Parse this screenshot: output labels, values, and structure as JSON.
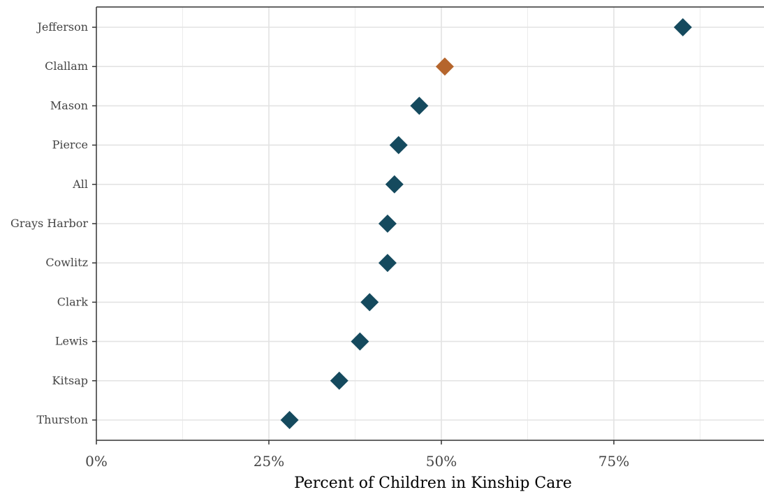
{
  "chart_data": {
    "type": "scatter",
    "title": "",
    "xlabel": "Percent of Children in Kinship Care",
    "ylabel": "",
    "xlim": [
      0,
      0.97
    ],
    "x_ticks": [
      {
        "value": 0,
        "label": "0%"
      },
      {
        "value": 0.25,
        "label": "25%"
      },
      {
        "value": 0.5,
        "label": "50%"
      },
      {
        "value": 0.75,
        "label": "75%"
      }
    ],
    "categories": [
      "Jefferson",
      "Clallam",
      "Mason",
      "Pierce",
      "All",
      "Grays Harbor",
      "Cowlitz",
      "Clark",
      "Lewis",
      "Kitsap",
      "Thurston"
    ],
    "values": [
      0.85,
      0.505,
      0.468,
      0.438,
      0.432,
      0.422,
      0.422,
      0.396,
      0.382,
      0.352,
      0.28
    ],
    "highlight": "Clallam",
    "colors": {
      "default": "#154a5e",
      "highlight": "#b5652c"
    },
    "grid": true
  }
}
